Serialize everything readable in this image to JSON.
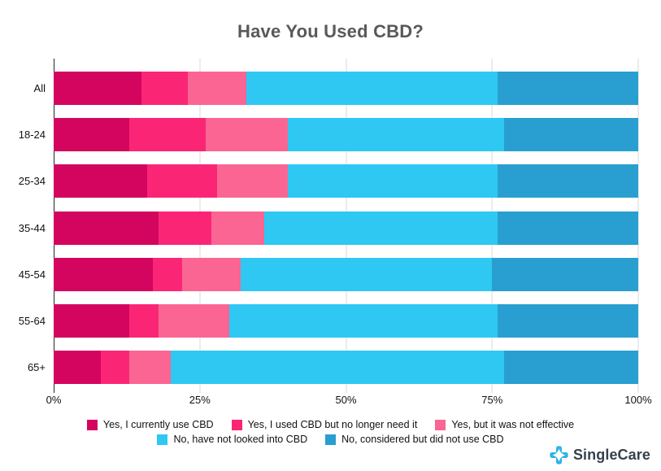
{
  "title": "Have You Used CBD?",
  "chart_data": {
    "type": "bar",
    "orientation": "horizontal",
    "stacked": true,
    "title": "Have You Used CBD?",
    "categories": [
      "All",
      "18-24",
      "25-34",
      "35-44",
      "45-54",
      "55-64",
      "65+"
    ],
    "series": [
      {
        "name": "Yes, I currently use CBD",
        "color": "#d3055f",
        "values": [
          15,
          13,
          16,
          18,
          17,
          13,
          8
        ]
      },
      {
        "name": "Yes, I used CBD but no longer need it",
        "color": "#fb2576",
        "values": [
          8,
          13,
          12,
          9,
          5,
          5,
          5
        ]
      },
      {
        "name": "Yes, but it was not effective",
        "color": "#fb6593",
        "values": [
          10,
          14,
          12,
          9,
          10,
          12,
          7
        ]
      },
      {
        "name": "No, have not looked into CBD",
        "color": "#2ec8f3",
        "values": [
          43,
          37,
          36,
          40,
          43,
          46,
          57
        ]
      },
      {
        "name": "No, considered but did not use CBD",
        "color": "#289fd0",
        "values": [
          24,
          23,
          24,
          24,
          25,
          24,
          23
        ]
      }
    ],
    "x_ticks": [
      "0%",
      "25%",
      "50%",
      "75%",
      "100%"
    ],
    "x_tick_positions": [
      0,
      25,
      50,
      75,
      100
    ],
    "xlim": [
      0,
      100
    ],
    "unit": "%",
    "grid": "vertical-gridlines",
    "legend_position": "bottom",
    "legend_rows": [
      [
        0,
        1,
        2
      ],
      [
        3,
        4
      ]
    ],
    "title_color": "#595959",
    "gridline_color": "#d9d9d9",
    "axis_color": "#262626"
  },
  "logo": {
    "text": "SingleCare",
    "icon": "singlecare-plus-icon",
    "icon_color": "#2bb3e8",
    "text_color": "#36414c"
  }
}
